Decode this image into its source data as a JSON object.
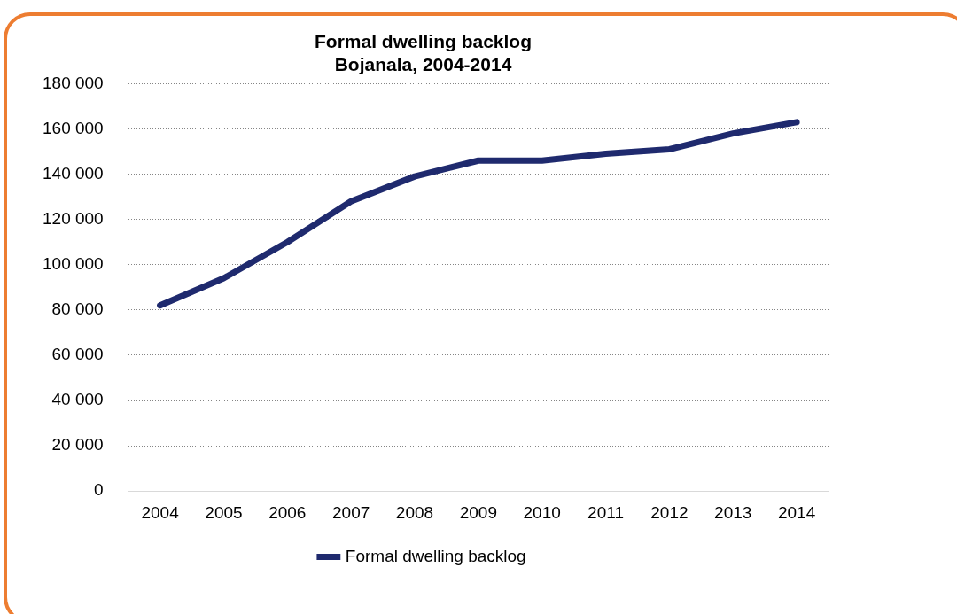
{
  "chart_data": {
    "type": "line",
    "title": "Formal dwelling backlog",
    "subtitle": "Bojanala, 2004-2014",
    "categories": [
      "2004",
      "2005",
      "2006",
      "2007",
      "2008",
      "2009",
      "2010",
      "2011",
      "2012",
      "2013",
      "2014"
    ],
    "series": [
      {
        "name": "Formal dwelling backlog",
        "color": "#1f2a6e",
        "values": [
          82000,
          94000,
          110000,
          128000,
          139000,
          146000,
          146000,
          149000,
          151000,
          158000,
          163000
        ]
      }
    ],
    "ylim": [
      0,
      180000
    ],
    "yticks": [
      {
        "value": 0,
        "label": "0"
      },
      {
        "value": 20000,
        "label": "20 000"
      },
      {
        "value": 40000,
        "label": "40 000"
      },
      {
        "value": 60000,
        "label": "60 000"
      },
      {
        "value": 80000,
        "label": "80 000"
      },
      {
        "value": 100000,
        "label": "100 000"
      },
      {
        "value": 120000,
        "label": "120 000"
      },
      {
        "value": 140000,
        "label": "140 000"
      },
      {
        "value": 160000,
        "label": "160 000"
      },
      {
        "value": 180000,
        "label": "180 000"
      }
    ],
    "grid": "y",
    "legend": "bottom",
    "marker": "none",
    "line_style": "solid"
  }
}
